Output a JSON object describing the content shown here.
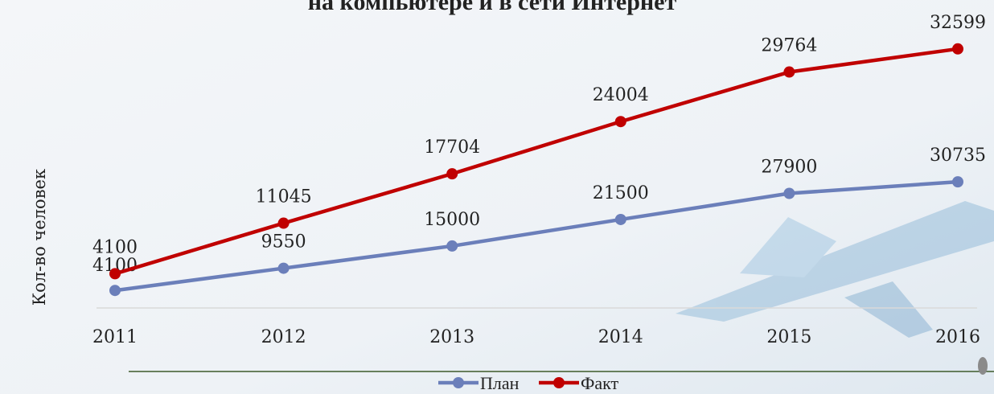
{
  "chart_data": {
    "type": "line",
    "stacked": true,
    "title": "на компьютере и в сети Интернет",
    "y_label": "Кол-во человек",
    "categories": [
      "2011",
      "2012",
      "2013",
      "2014",
      "2015",
      "2016"
    ],
    "series": [
      {
        "name": "План",
        "color": "#6b7fba",
        "values": [
          4100,
          9550,
          15000,
          21500,
          27900,
          30735
        ]
      },
      {
        "name": "Факт",
        "color": "#c00000",
        "values": [
          4100,
          11045,
          17704,
          24004,
          29764,
          32599
        ]
      }
    ],
    "ylim": [
      0,
      70000
    ],
    "legend": "bottom"
  }
}
